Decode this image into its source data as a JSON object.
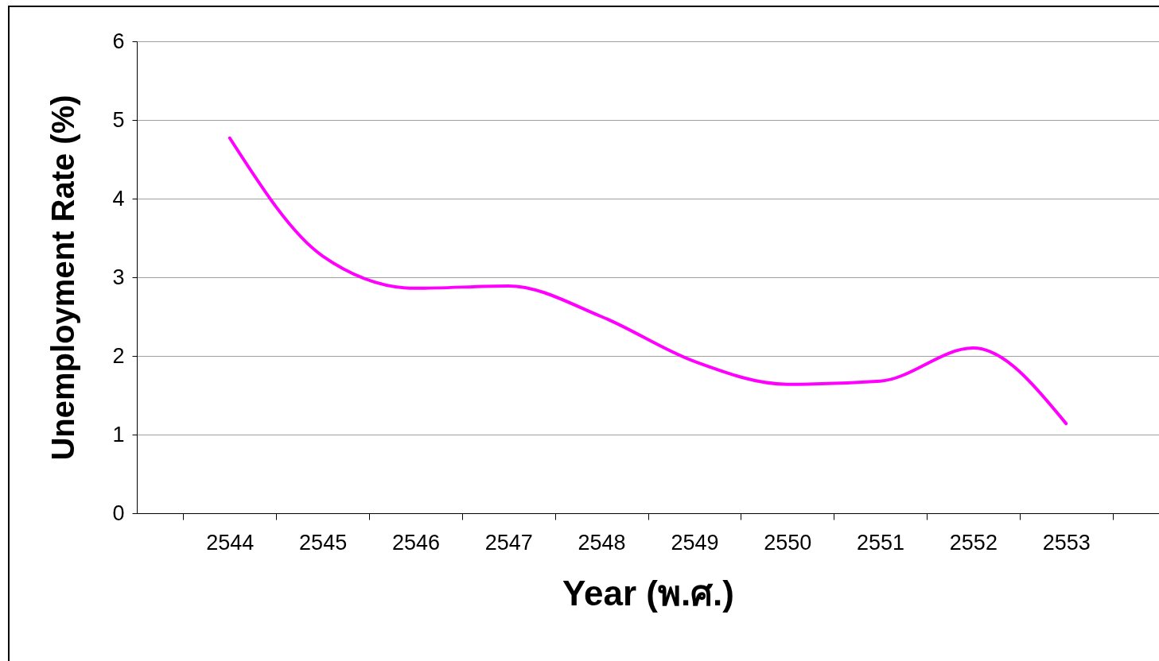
{
  "chart_data": {
    "type": "line",
    "xlabel": "Year (พ.ศ.)",
    "ylabel": "Unemployment Rate (%)",
    "categories": [
      "2544",
      "2545",
      "2546",
      "2547",
      "2548",
      "2549",
      "2550",
      "2551",
      "2552",
      "2553"
    ],
    "series": [
      {
        "color": "#ff00ff",
        "values": [
          4.77,
          3.27,
          2.86,
          2.89,
          2.5,
          1.93,
          1.64,
          1.68,
          2.1,
          1.14
        ]
      }
    ],
    "ylim": [
      0,
      6
    ],
    "yticks": [
      0,
      1,
      2,
      3,
      4,
      5,
      6
    ],
    "grid": "y",
    "legend": false,
    "marker": "none",
    "line_style": "solid"
  }
}
